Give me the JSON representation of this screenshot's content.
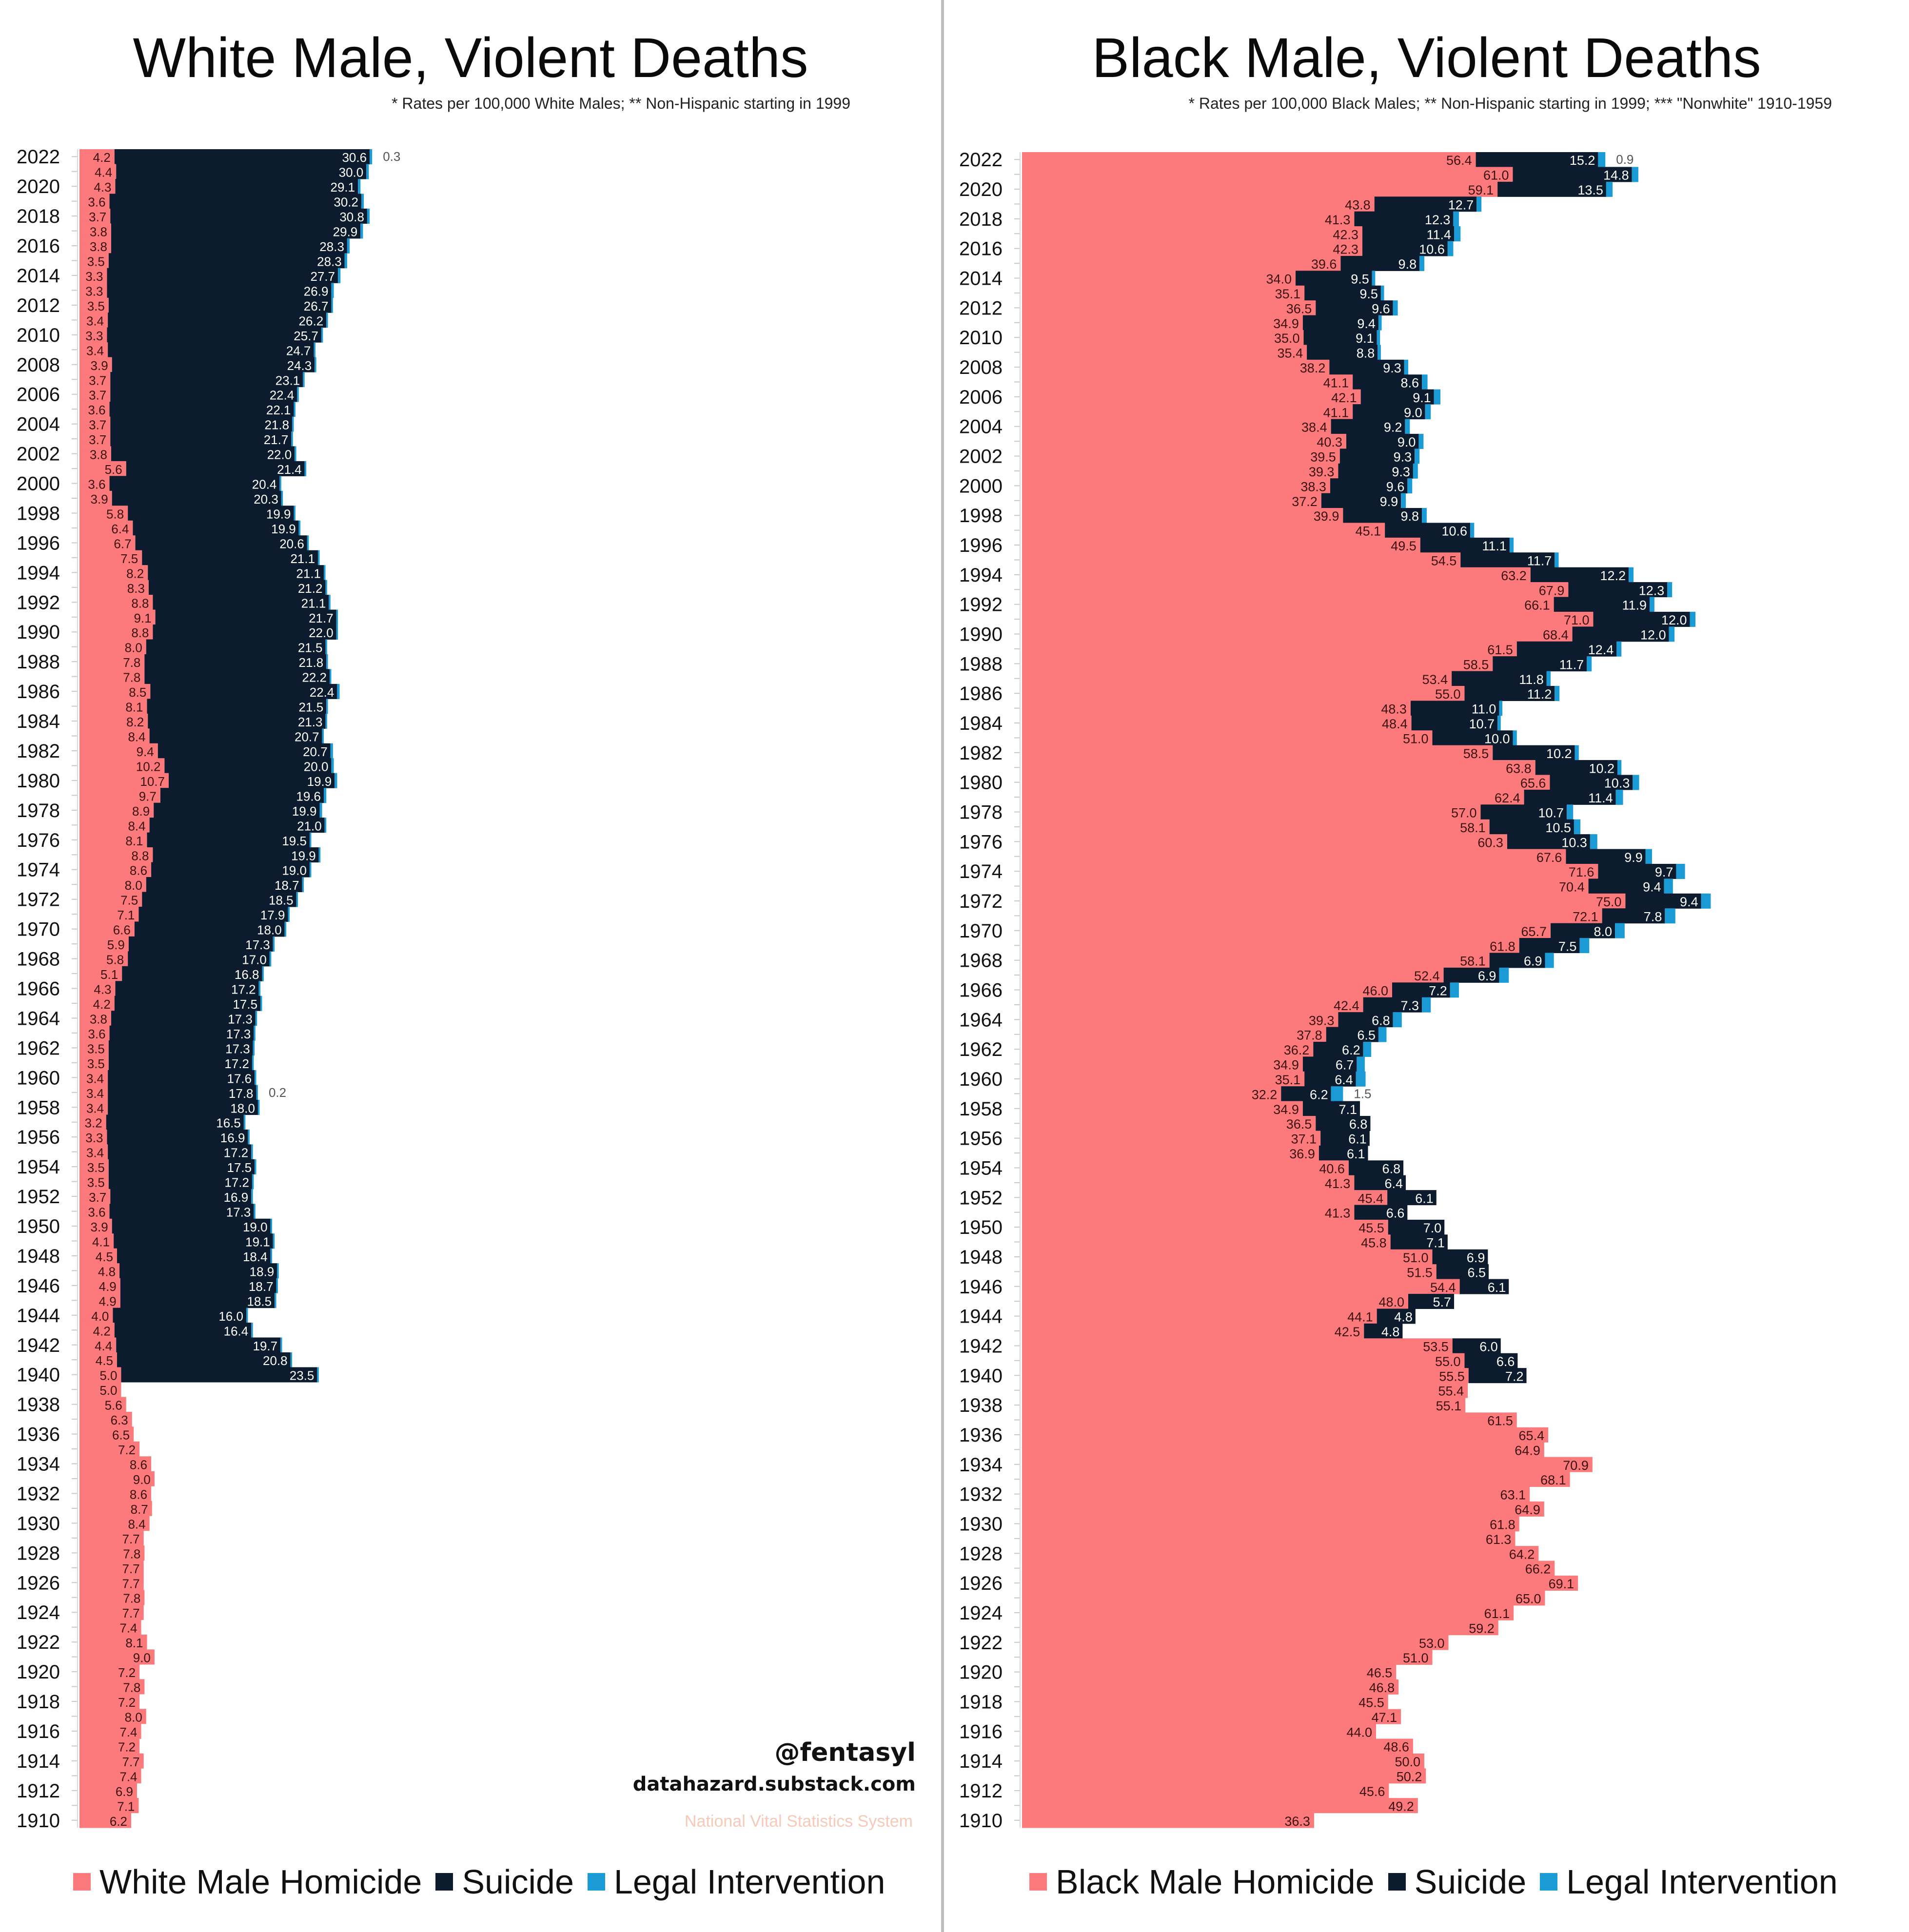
{
  "colors": {
    "homicide": "#fd7a7c",
    "suicide": "#0d1b2e",
    "legal": "#1a9bd6"
  },
  "credits": {
    "handle": "@fentasyl",
    "site": "datahazard.substack.com",
    "source": "National Vital Statistics System"
  },
  "chart_data": [
    {
      "type": "bar",
      "orientation": "horizontal-stacked",
      "title": "White Male, Violent Deaths",
      "subtitle": "* Rates per 100,000 White Males; ** Non-Hispanic starting in 1999",
      "legend": [
        "White Male Homicide",
        "Suicide",
        "Legal Intervention"
      ],
      "legend_position": "bottom",
      "year_labels": [
        "2022",
        "2020",
        "2018",
        "2016",
        "2014",
        "2012",
        "2010",
        "2008",
        "2006",
        "2004",
        "2002",
        "2000",
        "1998",
        "1996",
        "1994",
        "1992",
        "1990",
        "1988",
        "1986",
        "1984",
        "1982",
        "1980",
        "1978",
        "1976",
        "1974",
        "1972",
        "1970",
        "1968",
        "1966",
        "1964",
        "1962",
        "1960",
        "1958",
        "1956",
        "1954",
        "1952",
        "1950",
        "1948",
        "1946",
        "1944",
        "1942",
        "1940",
        "1938",
        "1936",
        "1934",
        "1932",
        "1930",
        "1928",
        "1926",
        "1924",
        "1922",
        "1920",
        "1918",
        "1916",
        "1914",
        "1912",
        "1910"
      ],
      "annotations": [
        {
          "year": 2022,
          "text": "0.3"
        },
        {
          "year": 1959,
          "text": "0.2"
        }
      ],
      "years": [
        2022,
        2021,
        2020,
        2019,
        2018,
        2017,
        2016,
        2015,
        2014,
        2013,
        2012,
        2011,
        2010,
        2009,
        2008,
        2007,
        2006,
        2005,
        2004,
        2003,
        2002,
        2001,
        2000,
        1999,
        1998,
        1997,
        1996,
        1995,
        1994,
        1993,
        1992,
        1991,
        1990,
        1989,
        1988,
        1987,
        1986,
        1985,
        1984,
        1983,
        1982,
        1981,
        1980,
        1979,
        1978,
        1977,
        1976,
        1975,
        1974,
        1973,
        1972,
        1971,
        1970,
        1969,
        1968,
        1967,
        1966,
        1965,
        1964,
        1963,
        1962,
        1961,
        1960,
        1959,
        1958,
        1957,
        1956,
        1955,
        1954,
        1953,
        1952,
        1951,
        1950,
        1949,
        1948,
        1947,
        1946,
        1945,
        1944,
        1943,
        1942,
        1941,
        1940,
        1939,
        1938,
        1937,
        1936,
        1935,
        1934,
        1933,
        1932,
        1931,
        1930,
        1929,
        1928,
        1927,
        1926,
        1925,
        1924,
        1923,
        1922,
        1921,
        1920,
        1919,
        1918,
        1917,
        1916,
        1915,
        1914,
        1913,
        1912,
        1911,
        1910
      ],
      "series": [
        {
          "name": "White Male Homicide",
          "values": [
            4.2,
            4.4,
            4.3,
            3.6,
            3.7,
            3.8,
            3.8,
            3.5,
            3.3,
            3.3,
            3.5,
            3.4,
            3.3,
            3.4,
            3.9,
            3.7,
            3.7,
            3.6,
            3.7,
            3.7,
            3.8,
            5.6,
            3.6,
            3.9,
            5.8,
            6.4,
            6.7,
            7.5,
            8.2,
            8.3,
            8.8,
            9.1,
            8.8,
            8.0,
            7.8,
            7.8,
            8.5,
            8.1,
            8.2,
            8.4,
            9.4,
            10.2,
            10.7,
            9.7,
            8.9,
            8.4,
            8.1,
            8.8,
            8.6,
            8.0,
            7.5,
            7.1,
            6.6,
            5.9,
            5.8,
            5.1,
            4.3,
            4.2,
            3.8,
            3.6,
            3.5,
            3.5,
            3.4,
            3.4,
            3.4,
            3.2,
            3.3,
            3.4,
            3.5,
            3.5,
            3.7,
            3.6,
            3.9,
            4.1,
            4.5,
            4.8,
            4.9,
            4.9,
            4.0,
            4.2,
            4.4,
            4.5,
            5.0,
            5.0,
            5.6,
            6.3,
            6.5,
            7.2,
            8.6,
            9.0,
            8.6,
            8.7,
            8.4,
            7.7,
            7.8,
            7.7,
            7.7,
            7.8,
            7.7,
            7.4,
            8.1,
            9.0,
            7.2,
            7.8,
            7.2,
            8.0,
            7.4,
            7.2,
            7.7,
            7.4,
            6.9,
            7.1,
            6.2
          ]
        },
        {
          "name": "Suicide",
          "values": [
            30.6,
            30.0,
            29.1,
            30.2,
            30.8,
            29.9,
            28.3,
            28.3,
            27.7,
            26.9,
            26.7,
            26.2,
            25.7,
            24.7,
            24.3,
            23.1,
            22.4,
            22.1,
            21.8,
            21.7,
            22.0,
            21.4,
            20.4,
            20.3,
            19.9,
            19.9,
            20.6,
            21.1,
            21.1,
            21.2,
            21.1,
            21.7,
            22.0,
            21.5,
            21.8,
            22.2,
            22.4,
            21.5,
            21.3,
            20.7,
            20.7,
            20.0,
            19.9,
            19.6,
            19.9,
            21.0,
            19.5,
            19.9,
            19.0,
            18.7,
            18.5,
            17.9,
            18.0,
            17.3,
            17.0,
            16.8,
            17.2,
            17.5,
            17.3,
            17.3,
            17.3,
            17.2,
            17.6,
            17.8,
            18.0,
            16.5,
            16.9,
            17.2,
            17.5,
            17.2,
            16.9,
            17.3,
            19.0,
            19.1,
            18.4,
            18.9,
            18.7,
            18.5,
            16.0,
            16.4,
            19.7,
            20.8,
            23.5,
            null,
            null,
            null,
            null,
            null,
            null,
            null,
            null,
            null,
            null,
            null,
            null,
            null,
            null,
            null,
            null,
            null,
            null,
            null,
            null,
            null,
            null,
            null,
            null,
            null,
            null,
            null,
            null,
            null,
            null
          ]
        },
        {
          "name": "Legal Intervention",
          "values": [
            0.3,
            0.3,
            0.3,
            0.3,
            0.3,
            0.3,
            0.3,
            0.3,
            0.3,
            0.3,
            0.2,
            0.2,
            0.2,
            0.2,
            0.2,
            0.2,
            0.2,
            0.2,
            0.2,
            0.2,
            0.2,
            0.2,
            0.2,
            0.2,
            0.2,
            0.2,
            0.2,
            0.2,
            0.2,
            0.2,
            0.2,
            0.2,
            0.2,
            0.2,
            0.2,
            0.2,
            0.3,
            0.2,
            0.2,
            0.2,
            0.3,
            0.3,
            0.3,
            0.3,
            0.3,
            0.2,
            0.2,
            0.2,
            0.2,
            0.2,
            0.2,
            0.2,
            0.2,
            0.2,
            0.2,
            0.2,
            0.2,
            0.2,
            0.2,
            0.2,
            0.2,
            0.2,
            0.2,
            0.2,
            0.2,
            0.2,
            0.2,
            0.2,
            0.2,
            0.2,
            0.2,
            0.2,
            0.2,
            0.2,
            0.2,
            0.2,
            0.2,
            0.2,
            0.2,
            0.2,
            0.2,
            0.2,
            0.2,
            null,
            null,
            null,
            null,
            null,
            null,
            null,
            null,
            null,
            null,
            null,
            null,
            null,
            null,
            null,
            null,
            null,
            null,
            null,
            null,
            null,
            null,
            null,
            null,
            null,
            null,
            null,
            null,
            null,
            null
          ]
        }
      ]
    },
    {
      "type": "bar",
      "orientation": "horizontal-stacked",
      "title": "Black Male, Violent Deaths",
      "subtitle": "* Rates per 100,000 Black Males; ** Non-Hispanic starting in 1999; *** \"Nonwhite\" 1910-1959",
      "legend": [
        "Black Male Homicide",
        "Suicide",
        "Legal Intervention"
      ],
      "legend_position": "bottom",
      "year_labels": [
        "2022",
        "2020",
        "2018",
        "2016",
        "2014",
        "2012",
        "2010",
        "2008",
        "2006",
        "2004",
        "2002",
        "2000",
        "1998",
        "1996",
        "1994",
        "1992",
        "1990",
        "1988",
        "1986",
        "1984",
        "1982",
        "1980",
        "1978",
        "1976",
        "1974",
        "1972",
        "1970",
        "1968",
        "1966",
        "1964",
        "1962",
        "1960",
        "1958",
        "1956",
        "1954",
        "1952",
        "1950",
        "1948",
        "1946",
        "1944",
        "1942",
        "1940",
        "1938",
        "1936",
        "1934",
        "1932",
        "1930",
        "1928",
        "1926",
        "1924",
        "1922",
        "1920",
        "1918",
        "1916",
        "1914",
        "1912",
        "1910"
      ],
      "annotations": [
        {
          "year": 2022,
          "text": "0.9"
        },
        {
          "year": 1959,
          "text": "1.5"
        }
      ],
      "years": [
        2022,
        2021,
        2020,
        2019,
        2018,
        2017,
        2016,
        2015,
        2014,
        2013,
        2012,
        2011,
        2010,
        2009,
        2008,
        2007,
        2006,
        2005,
        2004,
        2003,
        2002,
        2001,
        2000,
        1999,
        1998,
        1997,
        1996,
        1995,
        1994,
        1993,
        1992,
        1991,
        1990,
        1989,
        1988,
        1987,
        1986,
        1985,
        1984,
        1983,
        1982,
        1981,
        1980,
        1979,
        1978,
        1977,
        1976,
        1975,
        1974,
        1973,
        1972,
        1971,
        1970,
        1969,
        1968,
        1967,
        1966,
        1965,
        1964,
        1963,
        1962,
        1961,
        1960,
        1959,
        1958,
        1957,
        1956,
        1955,
        1954,
        1953,
        1952,
        1951,
        1950,
        1949,
        1948,
        1947,
        1946,
        1945,
        1944,
        1943,
        1942,
        1941,
        1940,
        1939,
        1938,
        1937,
        1936,
        1935,
        1934,
        1933,
        1932,
        1931,
        1930,
        1929,
        1928,
        1927,
        1926,
        1925,
        1924,
        1923,
        1922,
        1921,
        1920,
        1919,
        1918,
        1917,
        1916,
        1915,
        1914,
        1913,
        1912,
        1911,
        1910
      ],
      "series": [
        {
          "name": "Black Male Homicide",
          "values": [
            56.4,
            61.0,
            59.1,
            43.8,
            41.3,
            42.3,
            42.3,
            39.6,
            34.0,
            35.1,
            36.5,
            34.9,
            35.0,
            35.4,
            38.2,
            41.1,
            42.1,
            41.1,
            38.4,
            40.3,
            39.5,
            39.3,
            38.3,
            37.2,
            39.9,
            45.1,
            49.5,
            54.5,
            63.2,
            67.9,
            66.1,
            71.0,
            68.4,
            61.5,
            58.5,
            53.4,
            55.0,
            48.3,
            48.4,
            51.0,
            58.5,
            63.8,
            65.6,
            62.4,
            57.0,
            58.1,
            60.3,
            67.6,
            71.6,
            70.4,
            75.0,
            72.1,
            65.7,
            61.8,
            58.1,
            52.4,
            46.0,
            42.4,
            39.3,
            37.8,
            36.2,
            34.9,
            35.1,
            32.2,
            34.9,
            36.5,
            37.1,
            36.9,
            40.6,
            41.3,
            45.4,
            41.3,
            45.5,
            45.8,
            51.0,
            51.5,
            54.4,
            48.0,
            44.1,
            42.5,
            53.5,
            55.0,
            55.5,
            55.4,
            55.1,
            61.5,
            65.4,
            64.9,
            70.9,
            68.1,
            63.1,
            64.9,
            61.8,
            61.3,
            64.2,
            66.2,
            69.1,
            65.0,
            61.1,
            59.2,
            53.0,
            51.0,
            46.5,
            46.8,
            45.5,
            47.1,
            44.0,
            48.6,
            50.0,
            50.2,
            45.6,
            49.2,
            36.3
          ]
        },
        {
          "name": "Suicide",
          "values": [
            15.2,
            14.8,
            13.5,
            12.7,
            12.3,
            11.4,
            10.6,
            9.8,
            9.5,
            9.5,
            9.6,
            9.4,
            9.1,
            8.8,
            9.3,
            8.6,
            9.1,
            9.0,
            9.2,
            9.0,
            9.3,
            9.3,
            9.6,
            9.9,
            9.8,
            10.6,
            11.1,
            11.7,
            12.2,
            12.3,
            11.9,
            12.0,
            12.0,
            12.4,
            11.7,
            11.8,
            11.2,
            11.0,
            10.7,
            10.0,
            10.2,
            10.2,
            10.3,
            11.4,
            10.7,
            10.5,
            10.3,
            9.9,
            9.7,
            9.4,
            9.4,
            7.8,
            8.0,
            7.5,
            6.9,
            6.9,
            7.2,
            7.3,
            6.8,
            6.5,
            6.2,
            6.7,
            6.4,
            6.2,
            7.1,
            6.8,
            6.1,
            6.1,
            6.8,
            6.4,
            6.1,
            6.6,
            7.0,
            7.1,
            6.9,
            6.5,
            6.1,
            5.7,
            4.8,
            4.8,
            6.0,
            6.6,
            7.2,
            null,
            null,
            null,
            null,
            null,
            null,
            null,
            null,
            null,
            null,
            null,
            null,
            null,
            null,
            null,
            null,
            null,
            null,
            null,
            null,
            null,
            null,
            null,
            null,
            null,
            null,
            null,
            null,
            null,
            null
          ]
        },
        {
          "name": "Legal Intervention",
          "values": [
            0.9,
            0.8,
            0.8,
            0.6,
            0.7,
            0.8,
            0.7,
            0.6,
            0.4,
            0.4,
            0.6,
            0.4,
            0.4,
            0.4,
            0.5,
            0.7,
            0.8,
            0.7,
            0.6,
            0.6,
            0.6,
            0.6,
            0.6,
            0.6,
            0.6,
            0.5,
            0.5,
            0.5,
            0.6,
            0.6,
            0.6,
            0.7,
            0.7,
            0.6,
            0.6,
            0.5,
            0.6,
            0.4,
            0.4,
            0.5,
            0.5,
            0.5,
            0.8,
            0.9,
            0.8,
            0.8,
            0.9,
            0.8,
            1.1,
            1.1,
            1.2,
            1.3,
            1.2,
            1.2,
            1.1,
            1.2,
            1.1,
            1.1,
            1.1,
            1.0,
            1.0,
            1.0,
            1.2,
            1.5,
            null,
            null,
            null,
            null,
            null,
            null,
            null,
            null,
            null,
            null,
            null,
            null,
            null,
            null,
            null,
            null,
            null,
            null,
            null,
            null,
            null,
            null,
            null,
            null,
            null,
            null,
            null,
            null,
            null,
            null,
            null,
            null,
            null,
            null,
            null,
            null,
            null,
            null,
            null,
            null,
            null,
            null,
            null,
            null,
            null,
            null,
            null,
            null,
            null
          ]
        }
      ]
    }
  ]
}
